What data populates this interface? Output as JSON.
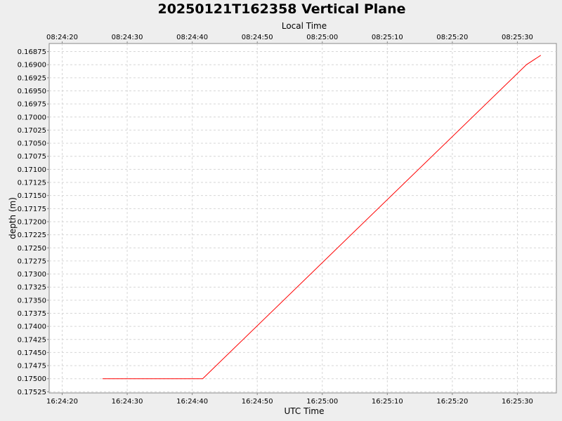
{
  "chart_data": {
    "type": "line",
    "title": "20250121T162358 Vertical Plane",
    "top_axis_label": "Local Time",
    "xlabel": "UTC Time",
    "ylabel": "depth (m)",
    "y_inverted": true,
    "ylim": [
      0.168595,
      0.175272
    ],
    "xlim_seconds": [
      1458,
      1536
    ],
    "x_ticks_utc": [
      "16:24:20",
      "16:24:30",
      "16:24:40",
      "16:24:50",
      "16:25:00",
      "16:25:10",
      "16:25:20",
      "16:25:30"
    ],
    "x_ticks_local": [
      "08:24:20",
      "08:24:30",
      "08:24:40",
      "08:24:50",
      "08:25:00",
      "08:25:10",
      "08:25:20",
      "08:25:30"
    ],
    "x_tick_seconds": [
      1460,
      1470,
      1480,
      1490,
      1500,
      1510,
      1520,
      1530
    ],
    "y_ticks": [
      "0.16875",
      "0.16900",
      "0.16925",
      "0.16950",
      "0.16975",
      "0.17000",
      "0.17025",
      "0.17050",
      "0.17075",
      "0.17100",
      "0.17125",
      "0.17150",
      "0.17175",
      "0.17200",
      "0.17225",
      "0.17250",
      "0.17275",
      "0.17300",
      "0.17325",
      "0.17350",
      "0.17375",
      "0.17400",
      "0.17425",
      "0.17450",
      "0.17475",
      "0.17500",
      "0.17525"
    ],
    "grid": true,
    "series": [
      {
        "color": "#ff0000",
        "x_seconds": [
          1466.2,
          1481.6,
          1531.4,
          1533.6
        ],
        "y": [
          0.175,
          0.175,
          0.169,
          0.16882
        ]
      }
    ]
  }
}
